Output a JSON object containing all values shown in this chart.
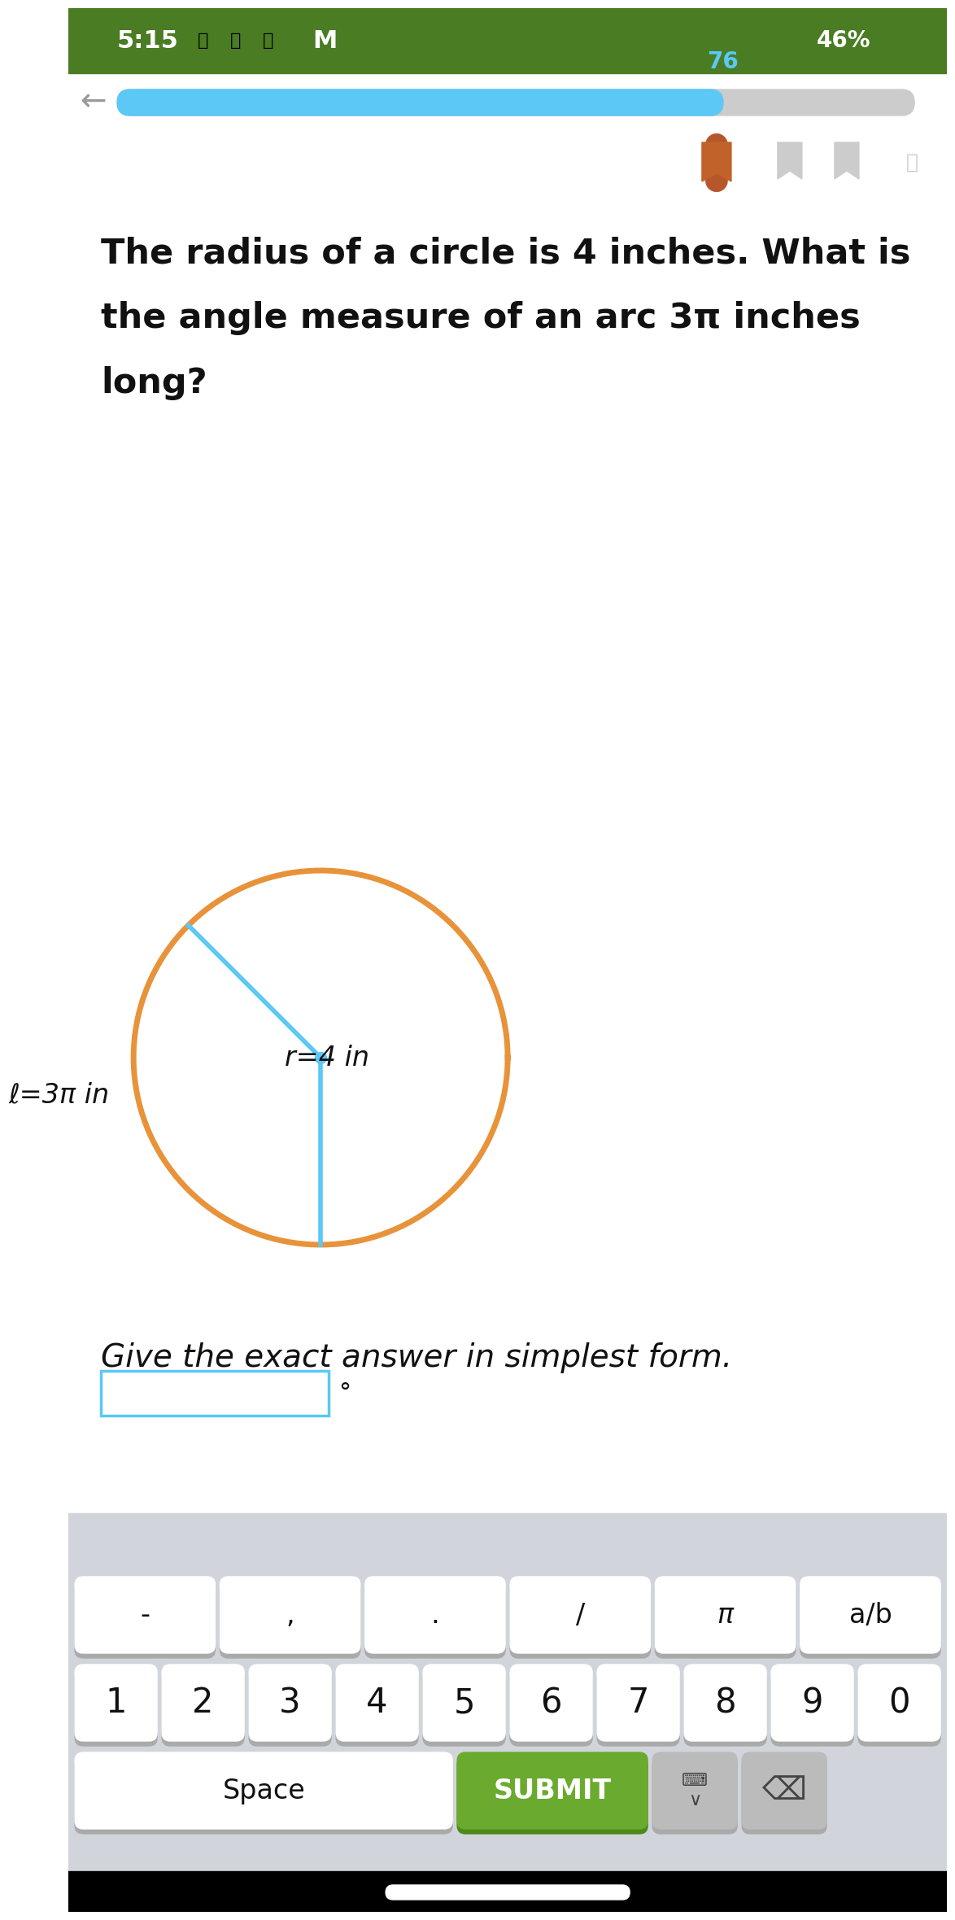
{
  "status_bar_bg": "#4a7c23",
  "status_bar_text": "#ffffff",
  "status_time": "5:15",
  "status_percent": "46%",
  "progress_value": 76,
  "progress_total": 100,
  "progress_color": "#5bc8f5",
  "progress_bg": "#cccccc",
  "question_text_line1": "The radius of a circle is 4 inches. What is",
  "question_text_line2": "the angle measure of an arc 3π inches",
  "question_text_line3": "long?",
  "circle_color": "#e8923a",
  "radius_line_color": "#5bc8f5",
  "radius_label": "r=4 in",
  "arc_label": "ℓ=3π in",
  "center_dot_color": "#5bc8f5",
  "hint_text": "Give the exact answer in simplest form.",
  "input_border_color": "#5bc8f5",
  "degree_symbol": "°",
  "keyboard_bg": "#d1d5db",
  "key_bg": "#ffffff",
  "key_shadow": "#aaaaaa",
  "submit_bg": "#6aaa2e",
  "submit_text": "SUBMIT",
  "submit_text_color": "#ffffff",
  "space_text": "Space",
  "bottom_bar_color": "#000000",
  "white_bg": "#ffffff",
  "special_keys": [
    "-",
    ",",
    ".",
    "/",
    "π",
    "a/b"
  ],
  "number_keys": [
    "1",
    "2",
    "3",
    "4",
    "5",
    "6",
    "7",
    "8",
    "9",
    "0"
  ]
}
